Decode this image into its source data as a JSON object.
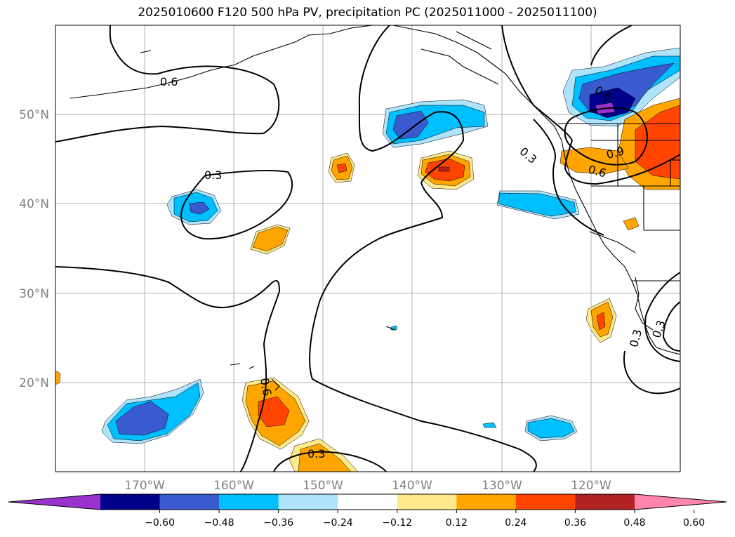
{
  "title": "2025010600 F120 500 hPa PV, precipitation PC (2025011000 - 2025011100)",
  "lon_labels": [
    "170°W",
    "160°W",
    "150°W",
    "140°W",
    "130°W",
    "120°W"
  ],
  "lat_labels": [
    "50°N",
    "40°N",
    "30°N",
    "20°N"
  ],
  "contour_labels": [
    "0.6",
    "0.3",
    "0.6",
    "0.3",
    "0.6",
    "0.9",
    "0.3",
    "0.3",
    "0.6",
    "0.3"
  ],
  "colorbar": {
    "ticks": [
      "−0.60",
      "−0.48",
      "−0.36",
      "−0.24",
      "−0.12",
      "0.12",
      "0.24",
      "0.36",
      "0.48",
      "0.60"
    ],
    "colors": [
      "#9932cc",
      "#00008b",
      "#3a5bd0",
      "#00bfff",
      "#ade3fb",
      "#ffffff",
      "#ffe98c",
      "#ffa500",
      "#ff4500",
      "#b22222",
      "#ff85ad"
    ]
  },
  "map": {
    "lon_range": [
      "180°W",
      "110°W"
    ],
    "lat_range": [
      "10°N",
      "60°N"
    ],
    "pv_contour_levels": [
      0.3,
      0.6,
      0.9
    ],
    "gridlines": true
  }
}
